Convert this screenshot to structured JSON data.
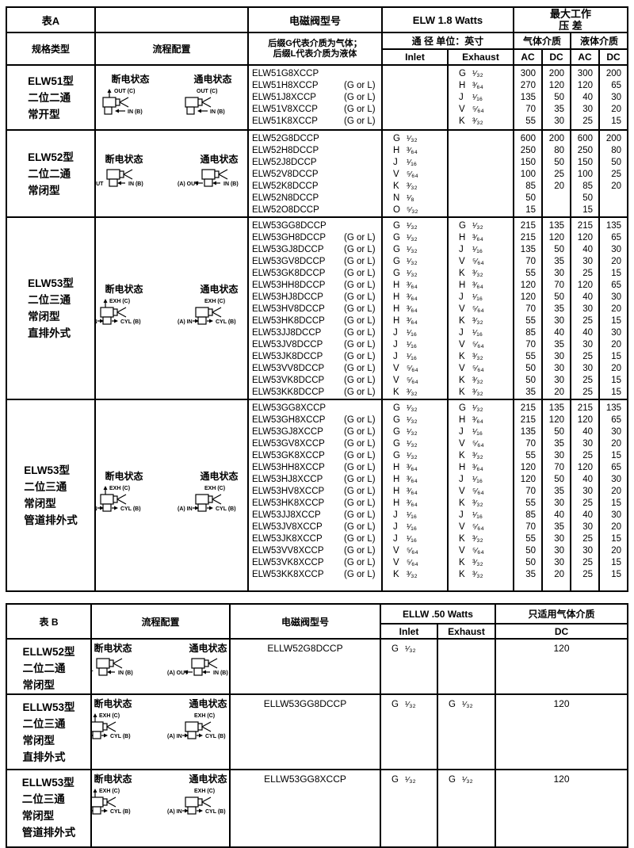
{
  "table_a": {
    "title": "表A",
    "header": {
      "spec": "规格类型",
      "flow": "流程配置",
      "model": "电磁阀型号",
      "model_note_line1": "后缀G代表介质为气体；",
      "model_note_line2": "后缀L代表介质为液体",
      "watts": "ELW 1.8 Watts",
      "port_unit": "通  径  单位：英寸",
      "inlet": "Inlet",
      "exhaust": "Exhaust",
      "max_work_line1": "最大工作",
      "max_work_line2": "压  差",
      "gas": "气体介质",
      "liquid": "液体介质",
      "ac": "AC",
      "dc": "DC"
    },
    "groups": [
      {
        "spec": [
          "ELW51型",
          "二位二通",
          "常开型"
        ],
        "diagram": {
          "type": "two_way_no",
          "off": "断电状态",
          "on": "通电状态",
          "labels": {
            "top": "OUT (C)",
            "right": "IN (B)"
          }
        },
        "models": [
          {
            "name": "ELW51G8XCCP",
            "suffix": "",
            "inlet": "",
            "inlet_size": "",
            "exhaust": "G",
            "exhaust_size": "¹⁄₃₂",
            "values": [
              "300",
              "200",
              "300",
              "200"
            ]
          },
          {
            "name": "ELW51H8XCCP",
            "suffix": "(G or L)",
            "inlet": "",
            "inlet_size": "",
            "exhaust": "H",
            "exhaust_size": "³⁄₆₄",
            "values": [
              "270",
              "120",
              "120",
              "65"
            ]
          },
          {
            "name": "ELW51J8XCCP",
            "suffix": "(G or L)",
            "inlet": "",
            "inlet_size": "",
            "exhaust": "J",
            "exhaust_size": "¹⁄₁₆",
            "values": [
              "135",
              "50",
              "40",
              "30"
            ]
          },
          {
            "name": "ELW51V8XCCP",
            "suffix": "(G or L)",
            "inlet": "",
            "inlet_size": "",
            "exhaust": "V",
            "exhaust_size": "⁵⁄₆₄",
            "values": [
              "70",
              "35",
              "30",
              "20"
            ]
          },
          {
            "name": "ELW51K8XCCP",
            "suffix": "(G or L)",
            "inlet": "",
            "inlet_size": "",
            "exhaust": "K",
            "exhaust_size": "³⁄₃₂",
            "values": [
              "55",
              "30",
              "25",
              "15"
            ]
          }
        ]
      },
      {
        "spec": [
          "ELW52型",
          "二位二通",
          "常闭型"
        ],
        "diagram": {
          "type": "two_way_nc",
          "off": "断电状态",
          "on": "通电状态",
          "labels": {
            "left": "(A) OUT",
            "right": "IN (B)"
          }
        },
        "models": [
          {
            "name": "ELW52G8DCCP",
            "suffix": "",
            "inlet": "G",
            "inlet_size": "¹⁄₃₂",
            "exhaust": "",
            "exhaust_size": "",
            "values": [
              "600",
              "200",
              "600",
              "200"
            ]
          },
          {
            "name": "ELW52H8DCCP",
            "suffix": "",
            "inlet": "H",
            "inlet_size": "³⁄₆₄",
            "exhaust": "",
            "exhaust_size": "",
            "values": [
              "250",
              "80",
              "250",
              "80"
            ]
          },
          {
            "name": "ELW52J8DCCP",
            "suffix": "",
            "inlet": "J",
            "inlet_size": "¹⁄₁₆",
            "exhaust": "",
            "exhaust_size": "",
            "values": [
              "150",
              "50",
              "150",
              "50"
            ]
          },
          {
            "name": "ELW52V8DCCP",
            "suffix": "",
            "inlet": "V",
            "inlet_size": "⁵⁄₆₄",
            "exhaust": "",
            "exhaust_size": "",
            "values": [
              "100",
              "25",
              "100",
              "25"
            ]
          },
          {
            "name": "ELW52K8DCCP",
            "suffix": "",
            "inlet": "K",
            "inlet_size": "³⁄₃₂",
            "exhaust": "",
            "exhaust_size": "",
            "values": [
              "85",
              "20",
              "85",
              "20"
            ]
          },
          {
            "name": "ELW52N8DCCP",
            "suffix": "",
            "inlet": "N",
            "inlet_size": "¹⁄₈",
            "exhaust": "",
            "exhaust_size": "",
            "values": [
              "50",
              "",
              "50",
              ""
            ]
          },
          {
            "name": "ELW52O8DCCP",
            "suffix": "",
            "inlet": "O",
            "inlet_size": "⁵⁄₃₂",
            "exhaust": "",
            "exhaust_size": "",
            "values": [
              "15",
              "",
              "15",
              ""
            ]
          }
        ]
      },
      {
        "spec": [
          "ELW53型",
          "二位三通",
          "常闭型",
          "直排外式"
        ],
        "diagram": {
          "type": "three_way",
          "off": "断电状态",
          "on": "通电状态",
          "labels": {
            "top": "EXH (C)",
            "left": "(A) IN",
            "right": "CYL (B)"
          }
        },
        "models": [
          {
            "name": "ELW53GG8DCCP",
            "suffix": "",
            "inlet": "G",
            "inlet_size": "¹⁄₃₂",
            "exhaust": "G",
            "exhaust_size": "¹⁄₃₂",
            "values": [
              "215",
              "135",
              "215",
              "135"
            ]
          },
          {
            "name": "ELW53GH8DCCP",
            "suffix": "(G or L)",
            "inlet": "G",
            "inlet_size": "¹⁄₃₂",
            "exhaust": "H",
            "exhaust_size": "³⁄₆₄",
            "values": [
              "215",
              "120",
              "120",
              "65"
            ]
          },
          {
            "name": "ELW53GJ8DCCP",
            "suffix": "(G or L)",
            "inlet": "G",
            "inlet_size": "¹⁄₃₂",
            "exhaust": "J",
            "exhaust_size": "¹⁄₁₆",
            "values": [
              "135",
              "50",
              "40",
              "30"
            ]
          },
          {
            "name": "ELW53GV8DCCP",
            "suffix": "(G or L)",
            "inlet": "G",
            "inlet_size": "¹⁄₃₂",
            "exhaust": "V",
            "exhaust_size": "⁵⁄₆₄",
            "values": [
              "70",
              "35",
              "30",
              "20"
            ]
          },
          {
            "name": "ELW53GK8DCCP",
            "suffix": "(G or L)",
            "inlet": "G",
            "inlet_size": "¹⁄₃₂",
            "exhaust": "K",
            "exhaust_size": "³⁄₃₂",
            "values": [
              "55",
              "30",
              "25",
              "15"
            ]
          },
          {
            "name": "ELW53HH8DCCP",
            "suffix": "(G or L)",
            "inlet": "H",
            "inlet_size": "³⁄₆₄",
            "exhaust": "H",
            "exhaust_size": "³⁄₆₄",
            "values": [
              "120",
              "70",
              "120",
              "65"
            ]
          },
          {
            "name": "ELW53HJ8DCCP",
            "suffix": "(G or L)",
            "inlet": "H",
            "inlet_size": "³⁄₆₄",
            "exhaust": "J",
            "exhaust_size": "¹⁄₁₆",
            "values": [
              "120",
              "50",
              "40",
              "30"
            ]
          },
          {
            "name": "ELW53HV8DCCP",
            "suffix": "(G or L)",
            "inlet": "H",
            "inlet_size": "³⁄₆₄",
            "exhaust": "V",
            "exhaust_size": "⁵⁄₆₄",
            "values": [
              "70",
              "35",
              "30",
              "20"
            ]
          },
          {
            "name": "ELW53HK8DCCP",
            "suffix": "(G or L)",
            "inlet": "H",
            "inlet_size": "³⁄₆₄",
            "exhaust": "K",
            "exhaust_size": "³⁄₃₂",
            "values": [
              "55",
              "30",
              "25",
              "15"
            ]
          },
          {
            "name": "ELW53JJ8DCCP",
            "suffix": "(G or L)",
            "inlet": "J",
            "inlet_size": "¹⁄₁₆",
            "exhaust": "J",
            "exhaust_size": "¹⁄₁₆",
            "values": [
              "85",
              "40",
              "40",
              "30"
            ]
          },
          {
            "name": "ELW53JV8DCCP",
            "suffix": "(G or L)",
            "inlet": "J",
            "inlet_size": "¹⁄₁₆",
            "exhaust": "V",
            "exhaust_size": "⁵⁄₆₄",
            "values": [
              "70",
              "35",
              "30",
              "20"
            ]
          },
          {
            "name": "ELW53JK8DCCP",
            "suffix": "(G or L)",
            "inlet": "J",
            "inlet_size": "¹⁄₁₆",
            "exhaust": "K",
            "exhaust_size": "³⁄₃₂",
            "values": [
              "55",
              "30",
              "25",
              "15"
            ]
          },
          {
            "name": "ELW53VV8DCCP",
            "suffix": "(G or L)",
            "inlet": "V",
            "inlet_size": "⁵⁄₆₄",
            "exhaust": "V",
            "exhaust_size": "⁵⁄₆₄",
            "values": [
              "50",
              "30",
              "30",
              "20"
            ]
          },
          {
            "name": "ELW53VK8DCCP",
            "suffix": "(G or L)",
            "inlet": "V",
            "inlet_size": "⁵⁄₆₄",
            "exhaust": "K",
            "exhaust_size": "³⁄₃₂",
            "values": [
              "50",
              "30",
              "25",
              "15"
            ]
          },
          {
            "name": "ELW53KK8DCCP",
            "suffix": "(G or L)",
            "inlet": "K",
            "inlet_size": "³⁄₃₂",
            "exhaust": "K",
            "exhaust_size": "³⁄₃₂",
            "values": [
              "35",
              "20",
              "25",
              "15"
            ]
          }
        ]
      },
      {
        "spec": [
          "ELW53型",
          "二位三通",
          "常闭型",
          "管道排外式"
        ],
        "diagram": {
          "type": "three_way",
          "off": "断电状态",
          "on": "通电状态",
          "labels": {
            "top": "EXH (C)",
            "left": "(A) IN",
            "right": "CYL (B)"
          }
        },
        "models": [
          {
            "name": "ELW53GG8XCCP",
            "suffix": "",
            "inlet": "G",
            "inlet_size": "¹⁄₃₂",
            "exhaust": "G",
            "exhaust_size": "¹⁄₃₂",
            "values": [
              "215",
              "135",
              "215",
              "135"
            ]
          },
          {
            "name": "ELW53GH8XCCP",
            "suffix": "(G or L)",
            "inlet": "G",
            "inlet_size": "¹⁄₃₂",
            "exhaust": "H",
            "exhaust_size": "³⁄₆₄",
            "values": [
              "215",
              "120",
              "120",
              "65"
            ]
          },
          {
            "name": "ELW53GJ8XCCP",
            "suffix": "(G or L)",
            "inlet": "G",
            "inlet_size": "¹⁄₃₂",
            "exhaust": "J",
            "exhaust_size": "¹⁄₁₆",
            "values": [
              "135",
              "50",
              "40",
              "30"
            ]
          },
          {
            "name": "ELW53GV8XCCP",
            "suffix": "(G or L)",
            "inlet": "G",
            "inlet_size": "¹⁄₃₂",
            "exhaust": "V",
            "exhaust_size": "⁵⁄₆₄",
            "values": [
              "70",
              "35",
              "30",
              "20"
            ]
          },
          {
            "name": "ELW53GK8XCCP",
            "suffix": "(G or L)",
            "inlet": "G",
            "inlet_size": "¹⁄₃₂",
            "exhaust": "K",
            "exhaust_size": "³⁄₃₂",
            "values": [
              "55",
              "30",
              "25",
              "15"
            ]
          },
          {
            "name": "ELW53HH8XCCP",
            "suffix": "(G or L)",
            "inlet": "H",
            "inlet_size": "³⁄₆₄",
            "exhaust": "H",
            "exhaust_size": "³⁄₆₄",
            "values": [
              "120",
              "70",
              "120",
              "65"
            ]
          },
          {
            "name": "ELW53HJ8XCCP",
            "suffix": "(G or L)",
            "inlet": "H",
            "inlet_size": "³⁄₆₄",
            "exhaust": "J",
            "exhaust_size": "¹⁄₁₆",
            "values": [
              "120",
              "50",
              "40",
              "30"
            ]
          },
          {
            "name": "ELW53HV8XCCP",
            "suffix": "(G or L)",
            "inlet": "H",
            "inlet_size": "³⁄₆₄",
            "exhaust": "V",
            "exhaust_size": "⁵⁄₆₄",
            "values": [
              "70",
              "35",
              "30",
              "20"
            ]
          },
          {
            "name": "ELW53HK8XCCP",
            "suffix": "(G or L)",
            "inlet": "H",
            "inlet_size": "³⁄₆₄",
            "exhaust": "K",
            "exhaust_size": "³⁄₃₂",
            "values": [
              "55",
              "30",
              "25",
              "15"
            ]
          },
          {
            "name": "ELW53JJ8XCCP",
            "suffix": "(G or L)",
            "inlet": "J",
            "inlet_size": "¹⁄₁₆",
            "exhaust": "J",
            "exhaust_size": "¹⁄₁₆",
            "values": [
              "85",
              "40",
              "40",
              "30"
            ]
          },
          {
            "name": "ELW53JV8XCCP",
            "suffix": "(G or L)",
            "inlet": "J",
            "inlet_size": "¹⁄₁₆",
            "exhaust": "V",
            "exhaust_size": "⁵⁄₆₄",
            "values": [
              "70",
              "35",
              "30",
              "20"
            ]
          },
          {
            "name": "ELW53JK8XCCP",
            "suffix": "(G or L)",
            "inlet": "J",
            "inlet_size": "¹⁄₁₆",
            "exhaust": "K",
            "exhaust_size": "³⁄₃₂",
            "values": [
              "55",
              "30",
              "25",
              "15"
            ]
          },
          {
            "name": "ELW53VV8XCCP",
            "suffix": "(G or L)",
            "inlet": "V",
            "inlet_size": "⁵⁄₆₄",
            "exhaust": "V",
            "exhaust_size": "⁵⁄₆₄",
            "values": [
              "50",
              "30",
              "30",
              "20"
            ]
          },
          {
            "name": "ELW53VK8XCCP",
            "suffix": "(G or L)",
            "inlet": "V",
            "inlet_size": "⁵⁄₆₄",
            "exhaust": "K",
            "exhaust_size": "³⁄₃₂",
            "values": [
              "50",
              "30",
              "25",
              "15"
            ]
          },
          {
            "name": "ELW53KK8XCCP",
            "suffix": "(G or L)",
            "inlet": "K",
            "inlet_size": "³⁄₃₂",
            "exhaust": "K",
            "exhaust_size": "³⁄₃₂",
            "values": [
              "35",
              "20",
              "25",
              "15"
            ]
          }
        ]
      }
    ]
  },
  "table_b": {
    "title": "表 B",
    "header": {
      "flow": "流程配置",
      "model": "电磁阀型号",
      "watts": "ELLW .50 Watts",
      "inlet": "Inlet",
      "exhaust": "Exhaust",
      "gas_only": "只适用气体介质",
      "dc": "DC"
    },
    "groups": [
      {
        "spec": [
          "ELLW52型",
          "二位二通",
          "常闭型"
        ],
        "diagram": {
          "type": "two_way_nc",
          "off": "断电状态",
          "on": "通电状态",
          "labels": {
            "left": "(A) OUT",
            "right": "IN (B)"
          }
        },
        "model": "ELLW52G8DCCP",
        "inlet": "G",
        "inlet_size": "¹⁄₃₂",
        "exhaust": "",
        "exhaust_size": "",
        "dc": "120"
      },
      {
        "spec": [
          "ELLW53型",
          "二位三通",
          "常闭型",
          "直排外式"
        ],
        "diagram": {
          "type": "three_way",
          "off": "断电状态",
          "on": "通电状态",
          "labels": {
            "top": "EXH (C)",
            "left": "(A) IN",
            "right": "CYL (B)"
          }
        },
        "model": "ELLW53GG8DCCP",
        "inlet": "G",
        "inlet_size": "¹⁄₃₂",
        "exhaust": "G",
        "exhaust_size": "¹⁄₃₂",
        "dc": "120"
      },
      {
        "spec": [
          "ELLW53型",
          "二位三通",
          "常闭型",
          "管道排外式"
        ],
        "diagram": {
          "type": "three_way",
          "off": "断电状态",
          "on": "通电状态",
          "labels": {
            "top": "EXH (C)",
            "left": "(A) IN",
            "right": "CYL (B)"
          }
        },
        "model": "ELLW53GG8XCCP",
        "inlet": "G",
        "inlet_size": "¹⁄₃₂",
        "exhaust": "G",
        "exhaust_size": "¹⁄₃₂",
        "dc": "120"
      }
    ]
  }
}
